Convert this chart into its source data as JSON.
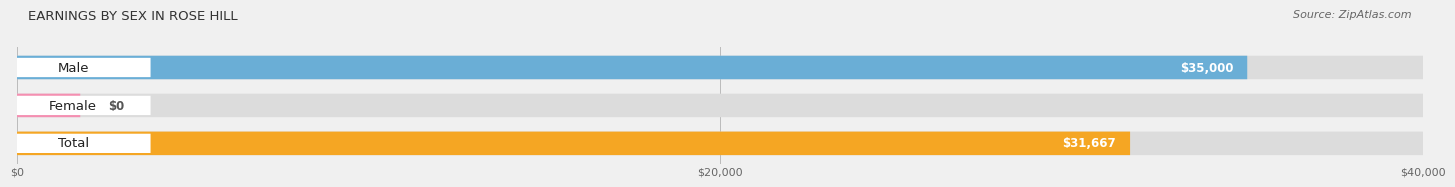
{
  "title": "EARNINGS BY SEX IN ROSE HILL",
  "source": "Source: ZipAtlas.com",
  "categories": [
    "Male",
    "Female",
    "Total"
  ],
  "values": [
    35000,
    0,
    31667
  ],
  "bar_colors": [
    "#6aaed6",
    "#f48fb1",
    "#f5a623"
  ],
  "value_labels": [
    "$35,000",
    "$0",
    "$31,667"
  ],
  "xlim": [
    0,
    40000
  ],
  "xticks": [
    0,
    20000,
    40000
  ],
  "xticklabels": [
    "$0",
    "$20,000",
    "$40,000"
  ],
  "bar_height": 0.62,
  "bg_color": "#f0f0f0",
  "bar_bg_color": "#dcdcdc",
  "title_fontsize": 9.5,
  "source_fontsize": 8,
  "label_fontsize": 9.5,
  "value_fontsize": 8.5,
  "female_stub": 1800
}
